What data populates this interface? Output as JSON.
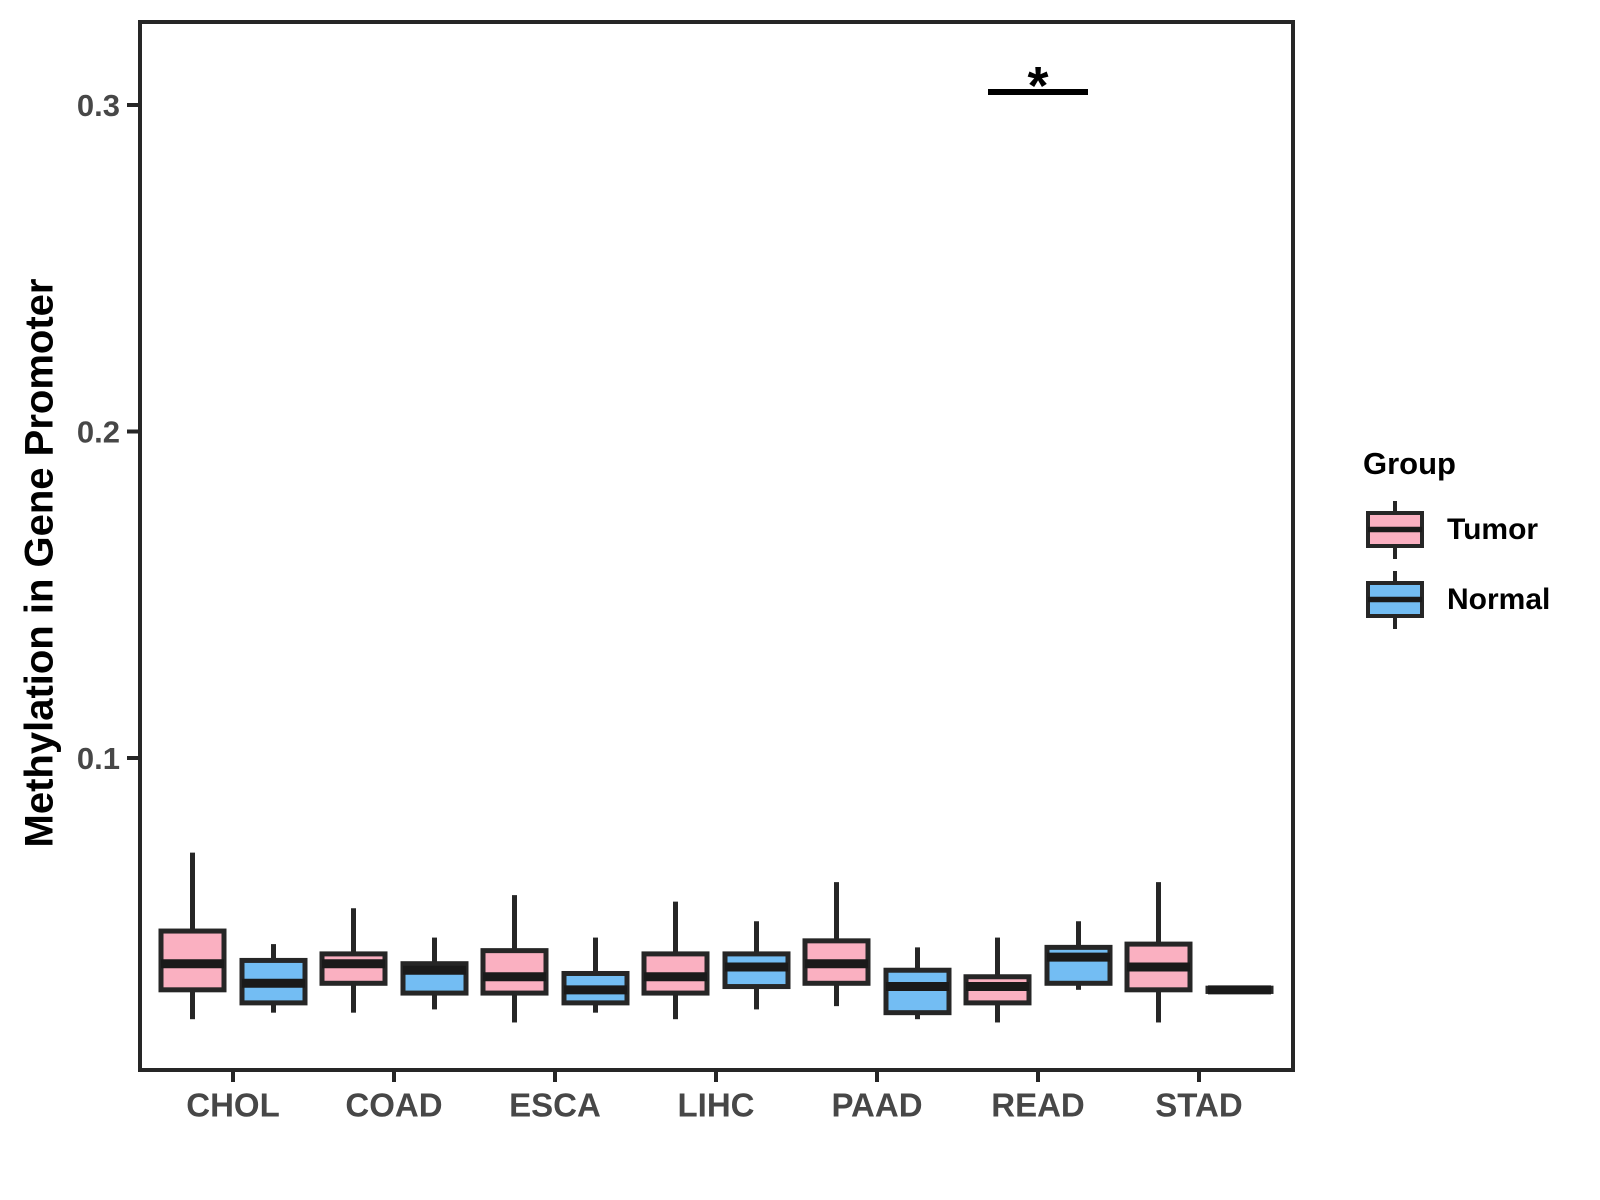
{
  "legend": {
    "title": "Group",
    "items": [
      {
        "label": "Tumor",
        "color": "#FAB0C1"
      },
      {
        "label": "Normal",
        "color": "#73BDF3"
      }
    ]
  },
  "chart_data": {
    "type": "boxplot",
    "title": "",
    "xlabel": "",
    "ylabel": "Methylation in Gene Promoter",
    "categories": [
      "CHOL",
      "COAD",
      "ESCA",
      "LIHC",
      "PAAD",
      "READ",
      "STAD"
    ],
    "yticks": [
      0.1,
      0.2,
      0.3
    ],
    "ylim": [
      0.004,
      0.325
    ],
    "grid": false,
    "legend_position": "right",
    "groups": [
      "Tumor",
      "Normal"
    ],
    "series": [
      {
        "name": "Tumor",
        "color": "#FAB0C1",
        "boxes": [
          {
            "low": 0.02,
            "q1": 0.029,
            "median": 0.037,
            "q3": 0.047,
            "high": 0.071
          },
          {
            "low": 0.022,
            "q1": 0.031,
            "median": 0.037,
            "q3": 0.04,
            "high": 0.054
          },
          {
            "low": 0.019,
            "q1": 0.028,
            "median": 0.033,
            "q3": 0.041,
            "high": 0.058
          },
          {
            "low": 0.02,
            "q1": 0.028,
            "median": 0.033,
            "q3": 0.04,
            "high": 0.056
          },
          {
            "low": 0.024,
            "q1": 0.031,
            "median": 0.037,
            "q3": 0.044,
            "high": 0.062
          },
          {
            "low": 0.019,
            "q1": 0.025,
            "median": 0.03,
            "q3": 0.033,
            "high": 0.045
          },
          {
            "low": 0.019,
            "q1": 0.029,
            "median": 0.036,
            "q3": 0.043,
            "high": 0.062
          }
        ]
      },
      {
        "name": "Normal",
        "color": "#73BDF3",
        "boxes": [
          {
            "low": 0.022,
            "q1": 0.025,
            "median": 0.031,
            "q3": 0.038,
            "high": 0.043
          },
          {
            "low": 0.023,
            "q1": 0.028,
            "median": 0.035,
            "q3": 0.037,
            "high": 0.045
          },
          {
            "low": 0.022,
            "q1": 0.025,
            "median": 0.029,
            "q3": 0.034,
            "high": 0.045
          },
          {
            "low": 0.023,
            "q1": 0.03,
            "median": 0.036,
            "q3": 0.04,
            "high": 0.05
          },
          {
            "low": 0.02,
            "q1": 0.022,
            "median": 0.03,
            "q3": 0.035,
            "high": 0.042
          },
          {
            "low": 0.029,
            "q1": 0.031,
            "median": 0.039,
            "q3": 0.042,
            "high": 0.05
          },
          {
            "low": 0.028,
            "q1": 0.0285,
            "median": 0.029,
            "q3": 0.0295,
            "high": 0.03
          }
        ]
      }
    ],
    "significance": {
      "label": "*",
      "category": "READ"
    }
  }
}
